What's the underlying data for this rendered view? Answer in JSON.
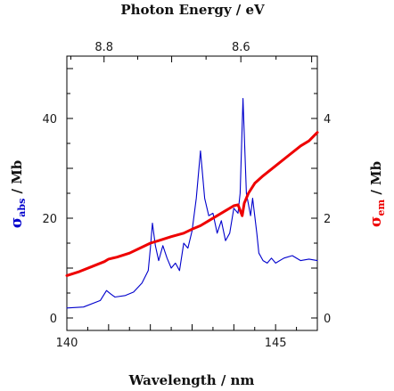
{
  "chart_data": {
    "type": "line",
    "title": "",
    "xlabel": "Wavelength / nm",
    "x2label": "Photon Energy / eV",
    "ylabel": {
      "symbol": "σ",
      "sub": "abs",
      "rest": " / Mb"
    },
    "y2label": {
      "symbol": "σ",
      "sub": "em",
      "rest": " / Mb"
    },
    "xlim": [
      140,
      146
    ],
    "ylim": [
      -2.5,
      52.5
    ],
    "y2lim": [
      -0.25,
      5.25
    ],
    "xticks": [
      140,
      145
    ],
    "yticks": [
      0,
      20,
      40
    ],
    "y2ticks": [
      0,
      2,
      4
    ],
    "x2ticks": [
      {
        "label": "8.8",
        "wavelength": 140.89
      },
      {
        "label": "8.6",
        "wavelength": 144.17
      }
    ],
    "legend": "none",
    "grid": false,
    "colors": {
      "abs": "#0000cc",
      "em": "#ee0000",
      "axis": "#000000"
    },
    "series": [
      {
        "key": "abs",
        "axis": "left",
        "x": [
          140.0,
          140.4,
          140.8,
          140.95,
          141.05,
          141.15,
          141.4,
          141.6,
          141.8,
          141.95,
          142.0,
          142.05,
          142.12,
          142.2,
          142.3,
          142.4,
          142.5,
          142.6,
          142.7,
          142.8,
          142.9,
          143.0,
          143.1,
          143.2,
          143.3,
          143.4,
          143.5,
          143.6,
          143.7,
          143.8,
          143.9,
          144.0,
          144.1,
          144.15,
          144.22,
          144.3,
          144.4,
          144.45,
          144.55,
          144.6,
          144.7,
          144.8,
          144.9,
          145.0,
          145.2,
          145.4,
          145.6,
          145.8,
          146.0
        ],
        "values": [
          2.0,
          2.2,
          3.5,
          5.5,
          4.8,
          4.2,
          4.5,
          5.2,
          7.0,
          9.5,
          14.0,
          19.0,
          14.5,
          11.5,
          14.5,
          12.0,
          10.0,
          11.0,
          9.5,
          15.0,
          14.0,
          17.5,
          24.0,
          33.5,
          24.0,
          20.5,
          21.0,
          17.0,
          19.5,
          15.5,
          17.0,
          22.0,
          21.0,
          25.0,
          44.0,
          25.0,
          20.5,
          24.0,
          17.0,
          13.0,
          11.5,
          11.0,
          12.0,
          11.0,
          12.0,
          12.5,
          11.5,
          11.8,
          11.5
        ]
      },
      {
        "key": "em",
        "axis": "right",
        "x": [
          140.0,
          140.3,
          140.6,
          140.9,
          141.0,
          141.2,
          141.5,
          141.8,
          142.0,
          142.2,
          142.5,
          142.8,
          143.0,
          143.2,
          143.4,
          143.6,
          143.8,
          144.0,
          144.1,
          144.2,
          144.25,
          144.35,
          144.5,
          144.7,
          145.0,
          145.3,
          145.6,
          145.8,
          146.0
        ],
        "values": [
          0.85,
          0.93,
          1.03,
          1.13,
          1.18,
          1.22,
          1.3,
          1.42,
          1.5,
          1.55,
          1.63,
          1.7,
          1.78,
          1.85,
          1.95,
          2.05,
          2.15,
          2.25,
          2.27,
          2.05,
          2.3,
          2.5,
          2.7,
          2.85,
          3.05,
          3.25,
          3.45,
          3.55,
          3.72
        ]
      }
    ]
  }
}
